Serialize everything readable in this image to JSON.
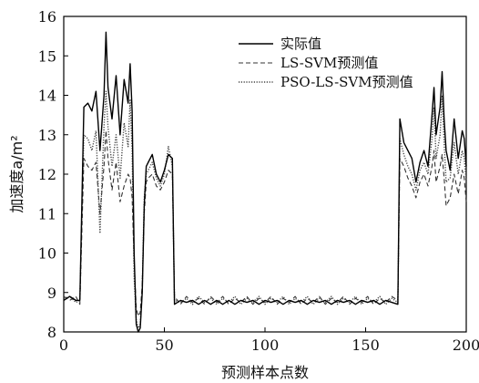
{
  "chart_data": {
    "type": "line",
    "xlabel": "预测样本点数",
    "ylabel": "加速度a/m²",
    "xlim": [
      0,
      200
    ],
    "ylim": [
      8,
      16
    ],
    "xticks": [
      0,
      50,
      100,
      150,
      200
    ],
    "yticks": [
      8,
      9,
      10,
      11,
      12,
      13,
      14,
      15,
      16
    ],
    "grid": false,
    "legend_position": "top-right",
    "series": [
      {
        "name": "实际值",
        "style": "solid",
        "color": "#000000",
        "points": [
          [
            0,
            8.8
          ],
          [
            3,
            8.9
          ],
          [
            6,
            8.8
          ],
          [
            8,
            8.8
          ],
          [
            10,
            13.7
          ],
          [
            12,
            13.8
          ],
          [
            14,
            13.6
          ],
          [
            16,
            14.1
          ],
          [
            18,
            12.6
          ],
          [
            20,
            14.0
          ],
          [
            21,
            15.6
          ],
          [
            22,
            14.2
          ],
          [
            24,
            13.4
          ],
          [
            26,
            14.5
          ],
          [
            28,
            13.0
          ],
          [
            30,
            14.4
          ],
          [
            32,
            13.8
          ],
          [
            33,
            14.8
          ],
          [
            34,
            13.6
          ],
          [
            35,
            10.0
          ],
          [
            36,
            8.2
          ],
          [
            37,
            8.0
          ],
          [
            38,
            8.1
          ],
          [
            39,
            9.0
          ],
          [
            40,
            11.2
          ],
          [
            41,
            12.2
          ],
          [
            42,
            12.3
          ],
          [
            44,
            12.5
          ],
          [
            46,
            12.0
          ],
          [
            48,
            11.8
          ],
          [
            50,
            12.1
          ],
          [
            52,
            12.5
          ],
          [
            54,
            12.4
          ],
          [
            55,
            8.7
          ],
          [
            58,
            8.8
          ],
          [
            61,
            8.75
          ],
          [
            64,
            8.8
          ],
          [
            67,
            8.7
          ],
          [
            70,
            8.8
          ],
          [
            73,
            8.7
          ],
          [
            76,
            8.8
          ],
          [
            79,
            8.7
          ],
          [
            82,
            8.8
          ],
          [
            85,
            8.7
          ],
          [
            88,
            8.8
          ],
          [
            91,
            8.75
          ],
          [
            94,
            8.8
          ],
          [
            97,
            8.7
          ],
          [
            100,
            8.8
          ],
          [
            103,
            8.75
          ],
          [
            106,
            8.8
          ],
          [
            109,
            8.7
          ],
          [
            112,
            8.8
          ],
          [
            115,
            8.75
          ],
          [
            118,
            8.8
          ],
          [
            121,
            8.7
          ],
          [
            124,
            8.8
          ],
          [
            127,
            8.75
          ],
          [
            130,
            8.8
          ],
          [
            133,
            8.7
          ],
          [
            136,
            8.8
          ],
          [
            139,
            8.75
          ],
          [
            142,
            8.8
          ],
          [
            145,
            8.7
          ],
          [
            148,
            8.8
          ],
          [
            151,
            8.75
          ],
          [
            154,
            8.8
          ],
          [
            157,
            8.7
          ],
          [
            160,
            8.8
          ],
          [
            163,
            8.75
          ],
          [
            166,
            8.7
          ],
          [
            167,
            13.4
          ],
          [
            169,
            12.8
          ],
          [
            171,
            12.6
          ],
          [
            173,
            12.4
          ],
          [
            175,
            11.8
          ],
          [
            177,
            12.3
          ],
          [
            179,
            12.6
          ],
          [
            181,
            12.2
          ],
          [
            183,
            13.5
          ],
          [
            184,
            14.2
          ],
          [
            185,
            13.0
          ],
          [
            187,
            13.7
          ],
          [
            188,
            14.6
          ],
          [
            189,
            13.4
          ],
          [
            190,
            12.6
          ],
          [
            192,
            12.1
          ],
          [
            194,
            13.4
          ],
          [
            196,
            12.4
          ],
          [
            198,
            13.1
          ],
          [
            199,
            12.9
          ],
          [
            200,
            12.2
          ]
        ]
      },
      {
        "name": "LS-SVM预测值",
        "style": "dashed",
        "color": "#333333",
        "points": [
          [
            0,
            8.9
          ],
          [
            3,
            8.8
          ],
          [
            6,
            8.9
          ],
          [
            8,
            8.7
          ],
          [
            10,
            12.4
          ],
          [
            12,
            12.2
          ],
          [
            14,
            12.1
          ],
          [
            16,
            12.3
          ],
          [
            18,
            11.0
          ],
          [
            20,
            12.2
          ],
          [
            21,
            13.1
          ],
          [
            22,
            12.4
          ],
          [
            24,
            11.6
          ],
          [
            26,
            12.3
          ],
          [
            28,
            11.3
          ],
          [
            30,
            11.7
          ],
          [
            32,
            12.0
          ],
          [
            33,
            11.9
          ],
          [
            34,
            11.4
          ],
          [
            35,
            9.8
          ],
          [
            36,
            8.6
          ],
          [
            37,
            8.4
          ],
          [
            38,
            8.5
          ],
          [
            39,
            9.2
          ],
          [
            40,
            11.0
          ],
          [
            41,
            11.8
          ],
          [
            42,
            11.9
          ],
          [
            44,
            12.0
          ],
          [
            46,
            11.7
          ],
          [
            48,
            11.6
          ],
          [
            50,
            11.8
          ],
          [
            52,
            12.1
          ],
          [
            54,
            12.0
          ],
          [
            55,
            8.9
          ],
          [
            58,
            8.7
          ],
          [
            61,
            8.9
          ],
          [
            64,
            8.75
          ],
          [
            67,
            8.85
          ],
          [
            70,
            8.7
          ],
          [
            73,
            8.9
          ],
          [
            76,
            8.75
          ],
          [
            79,
            8.9
          ],
          [
            82,
            8.7
          ],
          [
            85,
            8.85
          ],
          [
            88,
            8.75
          ],
          [
            91,
            8.9
          ],
          [
            94,
            8.7
          ],
          [
            97,
            8.85
          ],
          [
            100,
            8.75
          ],
          [
            103,
            8.9
          ],
          [
            106,
            8.7
          ],
          [
            109,
            8.85
          ],
          [
            112,
            8.75
          ],
          [
            115,
            8.9
          ],
          [
            118,
            8.7
          ],
          [
            121,
            8.85
          ],
          [
            124,
            8.75
          ],
          [
            127,
            8.9
          ],
          [
            130,
            8.7
          ],
          [
            133,
            8.85
          ],
          [
            136,
            8.75
          ],
          [
            139,
            8.9
          ],
          [
            142,
            8.7
          ],
          [
            145,
            8.85
          ],
          [
            148,
            8.75
          ],
          [
            151,
            8.9
          ],
          [
            154,
            8.7
          ],
          [
            157,
            8.85
          ],
          [
            160,
            8.75
          ],
          [
            163,
            8.9
          ],
          [
            166,
            8.8
          ],
          [
            167,
            12.4
          ],
          [
            169,
            12.2
          ],
          [
            171,
            11.9
          ],
          [
            173,
            11.7
          ],
          [
            175,
            11.4
          ],
          [
            177,
            11.8
          ],
          [
            179,
            12.0
          ],
          [
            181,
            11.7
          ],
          [
            183,
            12.2
          ],
          [
            184,
            12.6
          ],
          [
            185,
            11.8
          ],
          [
            187,
            12.2
          ],
          [
            188,
            12.5
          ],
          [
            189,
            11.9
          ],
          [
            190,
            11.2
          ],
          [
            192,
            11.4
          ],
          [
            194,
            12.0
          ],
          [
            196,
            11.5
          ],
          [
            198,
            12.1
          ],
          [
            199,
            11.9
          ],
          [
            200,
            11.3
          ]
        ]
      },
      {
        "name": "PSO-LS-SVM预测值",
        "style": "dotted",
        "color": "#444444",
        "points": [
          [
            0,
            8.85
          ],
          [
            3,
            8.9
          ],
          [
            6,
            8.75
          ],
          [
            8,
            8.8
          ],
          [
            10,
            13.0
          ],
          [
            12,
            12.9
          ],
          [
            14,
            12.6
          ],
          [
            16,
            13.1
          ],
          [
            18,
            10.5
          ],
          [
            20,
            13.2
          ],
          [
            21,
            14.1
          ],
          [
            22,
            13.2
          ],
          [
            24,
            12.2
          ],
          [
            26,
            13.0
          ],
          [
            28,
            11.9
          ],
          [
            30,
            13.3
          ],
          [
            32,
            12.7
          ],
          [
            33,
            13.9
          ],
          [
            34,
            12.6
          ],
          [
            35,
            9.4
          ],
          [
            36,
            8.3
          ],
          [
            37,
            8.1
          ],
          [
            38,
            8.2
          ],
          [
            39,
            9.1
          ],
          [
            40,
            11.4
          ],
          [
            41,
            12.0
          ],
          [
            42,
            12.1
          ],
          [
            44,
            12.3
          ],
          [
            46,
            11.9
          ],
          [
            48,
            11.7
          ],
          [
            50,
            12.0
          ],
          [
            52,
            12.7
          ],
          [
            54,
            12.2
          ],
          [
            55,
            8.8
          ],
          [
            58,
            8.75
          ],
          [
            61,
            8.85
          ],
          [
            64,
            8.7
          ],
          [
            67,
            8.9
          ],
          [
            70,
            8.75
          ],
          [
            73,
            8.85
          ],
          [
            76,
            8.7
          ],
          [
            79,
            8.85
          ],
          [
            82,
            8.75
          ],
          [
            85,
            8.9
          ],
          [
            88,
            8.7
          ],
          [
            91,
            8.85
          ],
          [
            94,
            8.75
          ],
          [
            97,
            8.9
          ],
          [
            100,
            8.7
          ],
          [
            103,
            8.85
          ],
          [
            106,
            8.75
          ],
          [
            109,
            8.9
          ],
          [
            112,
            8.7
          ],
          [
            115,
            8.85
          ],
          [
            118,
            8.75
          ],
          [
            121,
            8.9
          ],
          [
            124,
            8.7
          ],
          [
            127,
            8.85
          ],
          [
            130,
            8.75
          ],
          [
            133,
            8.9
          ],
          [
            136,
            8.7
          ],
          [
            139,
            8.85
          ],
          [
            142,
            8.75
          ],
          [
            145,
            8.9
          ],
          [
            148,
            8.7
          ],
          [
            151,
            8.85
          ],
          [
            154,
            8.75
          ],
          [
            157,
            8.9
          ],
          [
            160,
            8.7
          ],
          [
            163,
            8.85
          ],
          [
            166,
            8.75
          ],
          [
            167,
            12.9
          ],
          [
            169,
            12.5
          ],
          [
            171,
            12.2
          ],
          [
            173,
            12.0
          ],
          [
            175,
            11.6
          ],
          [
            177,
            12.1
          ],
          [
            179,
            12.3
          ],
          [
            181,
            12.0
          ],
          [
            183,
            12.9
          ],
          [
            184,
            13.7
          ],
          [
            185,
            12.4
          ],
          [
            187,
            13.0
          ],
          [
            188,
            14.0
          ],
          [
            189,
            12.8
          ],
          [
            190,
            11.8
          ],
          [
            192,
            11.9
          ],
          [
            194,
            12.8
          ],
          [
            196,
            12.0
          ],
          [
            198,
            12.6
          ],
          [
            199,
            12.4
          ],
          [
            200,
            11.8
          ]
        ]
      }
    ]
  }
}
